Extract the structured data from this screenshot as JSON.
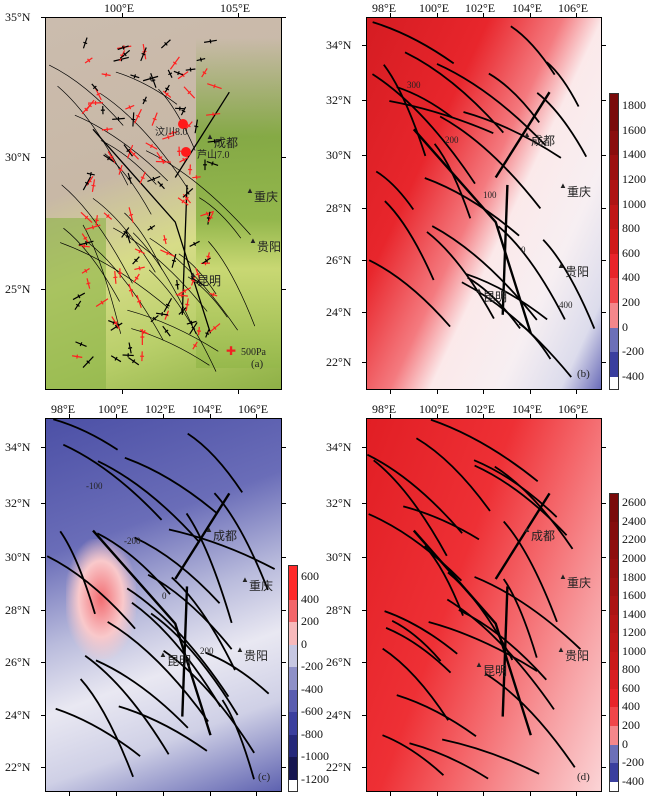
{
  "panels": [
    {
      "id": "a",
      "label": "(a)",
      "lon_ticks": [
        "100°E",
        "105°E"
      ],
      "lat_ticks": [
        "35°N",
        "30°N",
        "25°N"
      ],
      "cities": [
        "成都",
        "重庆",
        "贵阳",
        "昆明"
      ],
      "earthquakes": [
        "汶川8.0",
        "芦山7.0"
      ],
      "scale_label": "500Pa",
      "colors": {
        "plateau": "#c9b9a8",
        "basin": "#7fa83a",
        "lowland": "#d6e07a",
        "stress_red": "#ff2020",
        "stress_black": "#000000"
      }
    },
    {
      "id": "b",
      "label": "(b)",
      "lon_ticks": [
        "98°E",
        "100°E",
        "102°E",
        "104°E",
        "106°E"
      ],
      "lat_ticks": [
        "34°N",
        "32°N",
        "30°N",
        "28°N",
        "26°N",
        "24°N",
        "22°N"
      ],
      "cities": [
        "成都",
        "重庆",
        "贵阳",
        "昆明"
      ],
      "colorbar": [
        "1800",
        "1600",
        "1400",
        "1200",
        "1000",
        "800",
        "600",
        "400",
        "200",
        "0",
        "-200",
        "-400"
      ],
      "contour_labels": [
        "300",
        "200",
        "100",
        "0",
        "400"
      ]
    },
    {
      "id": "c",
      "label": "(c)",
      "lon_ticks": [
        "98°E",
        "100°E",
        "102°E",
        "104°E",
        "106°E"
      ],
      "lat_ticks": [
        "34°N",
        "32°N",
        "30°N",
        "28°N",
        "26°N",
        "24°N",
        "22°N"
      ],
      "cities": [
        "成都",
        "重庆",
        "贵阳",
        "昆明"
      ],
      "colorbar": [
        "600",
        "400",
        "200",
        "0",
        "-200",
        "-400",
        "-600",
        "-800",
        "-1000",
        "-1200"
      ],
      "contour_labels": [
        "-100",
        "-200",
        "0",
        "200"
      ]
    },
    {
      "id": "d",
      "label": "(d)",
      "lon_ticks": [
        "98°E",
        "100°E",
        "102°E",
        "104°E",
        "106°E"
      ],
      "lat_ticks": [
        "34°N",
        "32°N",
        "30°N",
        "28°N",
        "26°N",
        "24°N",
        "22°N"
      ],
      "cities": [
        "成都",
        "重庆",
        "贵阳",
        "昆明"
      ],
      "colorbar": [
        "2600",
        "2400",
        "2200",
        "2000",
        "1800",
        "1600",
        "1400",
        "1200",
        "1000",
        "800",
        "600",
        "400",
        "200",
        "0",
        "-200",
        "-400"
      ]
    }
  ],
  "colors": {
    "positive": "#e8242a",
    "dark_positive": "#7a0a0a",
    "neutral": "#f5f2f4",
    "negative": "#3b3f9e",
    "dark_negative": "#161650"
  }
}
